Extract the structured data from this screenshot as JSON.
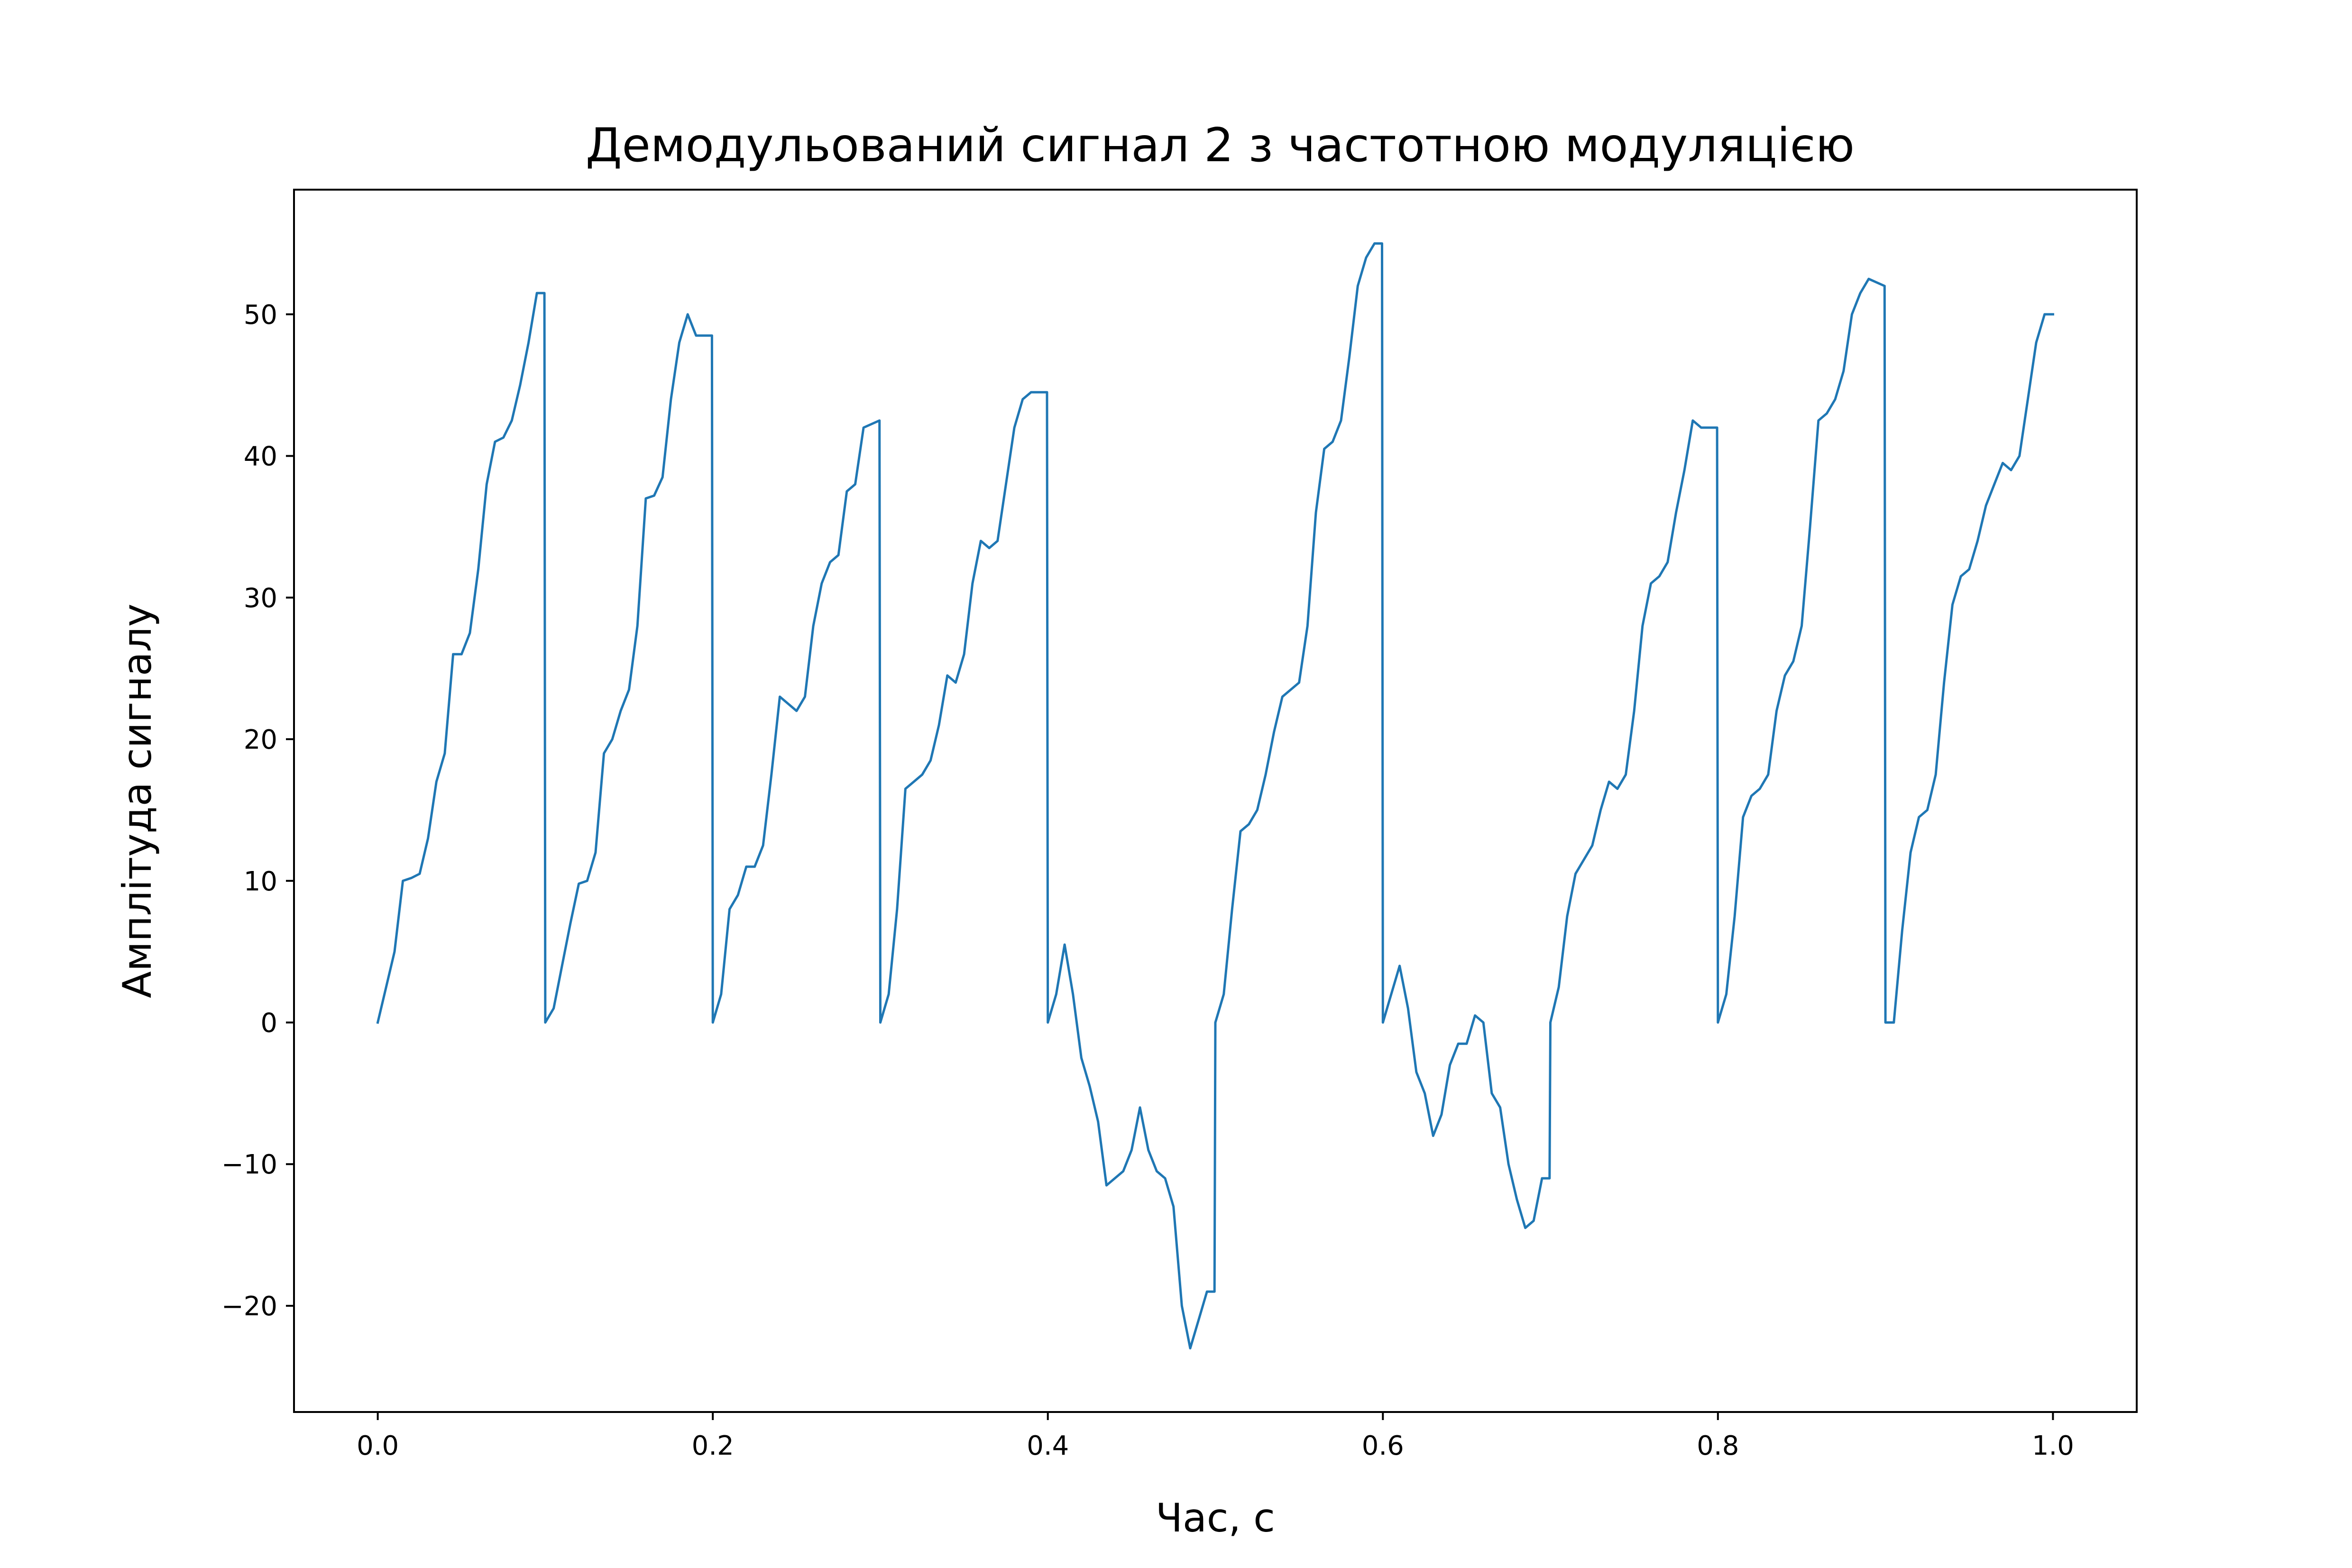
{
  "chart_data": {
    "type": "line",
    "title": "Демодульований сигнал 2 з частотною модуляцією",
    "xlabel": "Час, с",
    "ylabel": "Амплітуда сигналу",
    "xlim": [
      -0.05,
      1.05
    ],
    "ylim": [
      -27.5,
      58.8
    ],
    "xticks": [
      0.0,
      0.2,
      0.4,
      0.6,
      0.8,
      1.0
    ],
    "xtick_labels": [
      "0.0",
      "0.2",
      "0.4",
      "0.6",
      "0.8",
      "1.0"
    ],
    "yticks": [
      -20,
      -10,
      0,
      10,
      20,
      30,
      40,
      50
    ],
    "ytick_labels": [
      "−20",
      "−10",
      "0",
      "10",
      "20",
      "30",
      "40",
      "50"
    ],
    "grid": false,
    "line_color": "#1f77b4",
    "series": [
      {
        "name": "",
        "x": [
          0.0,
          0.005,
          0.01,
          0.015,
          0.02,
          0.025,
          0.03,
          0.035,
          0.04,
          0.045,
          0.05,
          0.055,
          0.06,
          0.065,
          0.07,
          0.075,
          0.08,
          0.085,
          0.09,
          0.095,
          0.0995,
          0.1,
          0.105,
          0.11,
          0.115,
          0.12,
          0.125,
          0.13,
          0.135,
          0.14,
          0.145,
          0.15,
          0.155,
          0.16,
          0.165,
          0.17,
          0.175,
          0.18,
          0.185,
          0.19,
          0.1995,
          0.2,
          0.205,
          0.21,
          0.215,
          0.22,
          0.225,
          0.23,
          0.235,
          0.24,
          0.245,
          0.25,
          0.255,
          0.26,
          0.265,
          0.27,
          0.275,
          0.28,
          0.285,
          0.29,
          0.2995,
          0.3,
          0.305,
          0.31,
          0.315,
          0.32,
          0.325,
          0.33,
          0.335,
          0.34,
          0.345,
          0.35,
          0.355,
          0.36,
          0.365,
          0.37,
          0.375,
          0.38,
          0.385,
          0.39,
          0.3995,
          0.4,
          0.405,
          0.41,
          0.415,
          0.42,
          0.425,
          0.43,
          0.435,
          0.44,
          0.445,
          0.45,
          0.455,
          0.46,
          0.465,
          0.47,
          0.475,
          0.48,
          0.485,
          0.49,
          0.495,
          0.4995,
          0.5,
          0.505,
          0.51,
          0.515,
          0.52,
          0.525,
          0.53,
          0.535,
          0.54,
          0.545,
          0.55,
          0.555,
          0.56,
          0.565,
          0.57,
          0.575,
          0.58,
          0.585,
          0.59,
          0.595,
          0.5995,
          0.6,
          0.605,
          0.61,
          0.615,
          0.62,
          0.625,
          0.63,
          0.635,
          0.64,
          0.645,
          0.65,
          0.655,
          0.66,
          0.665,
          0.67,
          0.675,
          0.68,
          0.685,
          0.69,
          0.695,
          0.6995,
          0.7,
          0.705,
          0.71,
          0.715,
          0.72,
          0.725,
          0.73,
          0.735,
          0.74,
          0.745,
          0.75,
          0.755,
          0.76,
          0.765,
          0.77,
          0.775,
          0.78,
          0.785,
          0.79,
          0.7995,
          0.8,
          0.805,
          0.81,
          0.815,
          0.82,
          0.825,
          0.83,
          0.835,
          0.84,
          0.845,
          0.85,
          0.855,
          0.86,
          0.865,
          0.87,
          0.875,
          0.88,
          0.885,
          0.89,
          0.8995,
          0.9,
          0.905,
          0.91,
          0.915,
          0.92,
          0.925,
          0.93,
          0.935,
          0.94,
          0.945,
          0.95,
          0.955,
          0.96,
          0.965,
          0.97,
          0.975,
          0.98,
          0.985,
          0.99,
          0.995,
          1.0
        ],
        "y": [
          0.0,
          2.5,
          5.0,
          10.0,
          10.2,
          10.5,
          13.0,
          17.0,
          19.0,
          26.0,
          26.0,
          27.5,
          32.0,
          38.0,
          41.0,
          41.3,
          42.5,
          45.0,
          48.0,
          51.5,
          51.5,
          0.0,
          1.0,
          4.0,
          7.0,
          9.8,
          10.0,
          12.0,
          19.0,
          20.0,
          22.0,
          23.5,
          28.0,
          37.0,
          37.2,
          38.5,
          44.0,
          48.0,
          50.0,
          48.5,
          48.5,
          0.0,
          2.0,
          8.0,
          9.0,
          11.0,
          11.0,
          12.5,
          17.5,
          23.0,
          22.5,
          22.0,
          23.0,
          28.0,
          31.0,
          32.5,
          33.0,
          37.5,
          38.0,
          42.0,
          42.5,
          0.0,
          2.0,
          8.0,
          16.5,
          17.0,
          17.5,
          18.5,
          21.0,
          24.5,
          24.0,
          26.0,
          31.0,
          34.0,
          33.5,
          34.0,
          38.0,
          42.0,
          44.0,
          44.5,
          44.5,
          0.0,
          2.0,
          5.5,
          2.0,
          -2.5,
          -4.5,
          -7.0,
          -11.5,
          -11.0,
          -10.5,
          -9.0,
          -6.0,
          -9.0,
          -10.5,
          -11.0,
          -13.0,
          -20.0,
          -23.0,
          -21.0,
          -19.0,
          -19.0,
          0.0,
          2.0,
          8.0,
          13.5,
          14.0,
          15.0,
          17.5,
          20.5,
          23.0,
          23.5,
          24.0,
          28.0,
          36.0,
          40.5,
          41.0,
          42.5,
          47.0,
          52.0,
          54.0,
          55.0,
          55.0,
          0.0,
          2.0,
          4.0,
          1.0,
          -3.5,
          -5.0,
          -8.0,
          -6.5,
          -3.0,
          -1.5,
          -1.5,
          0.5,
          0.0,
          -5.0,
          -6.0,
          -10.0,
          -12.5,
          -14.5,
          -14.0,
          -11.0,
          -11.0,
          0.0,
          2.5,
          7.5,
          10.5,
          11.5,
          12.5,
          15.0,
          17.0,
          16.5,
          17.5,
          22.0,
          28.0,
          31.0,
          31.5,
          32.5,
          36.0,
          39.0,
          42.5,
          42.0,
          42.0,
          0.0,
          2.0,
          7.5,
          14.5,
          16.0,
          16.5,
          17.5,
          22.0,
          24.5,
          25.5,
          28.0,
          35.0,
          42.5,
          43.0,
          44.0,
          46.0,
          50.0,
          51.5,
          52.5,
          52.0,
          0.0,
          0.0,
          6.5,
          12.0,
          14.5,
          15.0,
          17.5,
          24.0,
          29.5,
          31.5,
          32.0,
          34.0,
          36.5,
          38.0,
          39.5,
          39.0,
          40.0,
          44.0,
          48.0,
          50.0,
          50.0
        ]
      }
    ]
  }
}
